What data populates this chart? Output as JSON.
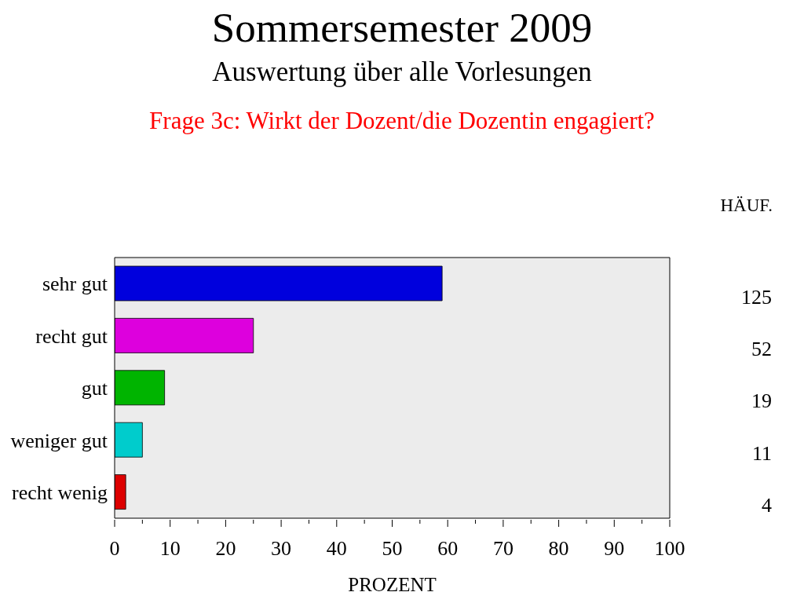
{
  "chart_data": {
    "type": "bar",
    "orientation": "horizontal",
    "title": "Sommersemester 2009",
    "subtitle": "Auswertung über alle Vorlesungen",
    "annotations": [
      "Frage 3c: Wirkt der Dozent/die Dozentin engagiert?",
      "HÄUF.",
      "125",
      "52",
      "19",
      "11",
      "4"
    ],
    "xlabel": "PROZENT",
    "categories": [
      "sehr gut",
      "recht gut",
      "gut",
      "weniger gut",
      "recht wenig"
    ],
    "values": [
      59,
      25,
      9,
      5,
      2
    ],
    "colors": [
      "#0000dd",
      "#dd00dd",
      "#00b400",
      "#00cccc",
      "#dd0000"
    ],
    "xlim": [
      0,
      100
    ],
    "xticks": [
      0,
      {
        "value": 5,
        "label": null
      },
      10,
      {
        "value": 15,
        "label": null
      },
      20,
      {
        "value": 25,
        "label": null
      },
      30,
      {
        "value": 35,
        "label": null
      },
      40,
      {
        "value": 45,
        "label": null
      },
      50,
      {
        "value": 55,
        "label": null
      },
      60,
      {
        "value": 65,
        "label": null
      },
      70,
      {
        "value": 75,
        "label": null
      },
      80,
      {
        "value": 85,
        "label": null
      },
      90,
      {
        "value": 95,
        "label": null
      },
      100
    ]
  }
}
